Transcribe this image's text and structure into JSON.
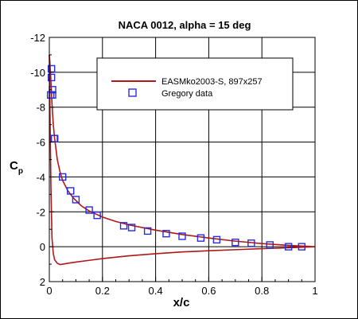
{
  "chart_data": {
    "type": "line",
    "title": "NACA 0012, alpha = 15 deg",
    "xlabel": "x/c",
    "ylabel_main": "C",
    "ylabel_sub": "p",
    "xlim": [
      0,
      1
    ],
    "ylim": [
      2,
      -12
    ],
    "y_inverted": true,
    "grid": true,
    "legend_placement": "top-right",
    "x_ticks": [
      0,
      0.2,
      0.4,
      0.6,
      0.8,
      1
    ],
    "x_tick_labels": [
      "0",
      "0.2",
      "0.4",
      "0.6",
      "0.8",
      "1"
    ],
    "y_ticks": [
      -12,
      -10,
      -8,
      -6,
      -4,
      -2,
      0,
      2
    ],
    "y_tick_labels": [
      "-12",
      "-10",
      "-8",
      "-6",
      "-4",
      "-2",
      "0",
      "2"
    ],
    "series": [
      {
        "name": "EASMko2003-S, 897x257",
        "kind": "line",
        "color": "#b01818",
        "upper": {
          "x": [
            0.0,
            0.002,
            0.005,
            0.01,
            0.015,
            0.02,
            0.03,
            0.04,
            0.05,
            0.07,
            0.09,
            0.12,
            0.15,
            0.2,
            0.25,
            0.3,
            0.4,
            0.5,
            0.6,
            0.7,
            0.8,
            0.9,
            1.0
          ],
          "y": [
            -11.0,
            -10.6,
            -9.8,
            -8.2,
            -7.0,
            -6.2,
            -5.0,
            -4.3,
            -3.8,
            -3.2,
            -2.8,
            -2.35,
            -2.05,
            -1.7,
            -1.45,
            -1.25,
            -0.95,
            -0.7,
            -0.5,
            -0.32,
            -0.18,
            -0.08,
            0.0
          ]
        },
        "lower": {
          "x": [
            0.0,
            0.003,
            0.006,
            0.01,
            0.015,
            0.02,
            0.03,
            0.04,
            0.05,
            0.07,
            0.1,
            0.15,
            0.2,
            0.3,
            0.4,
            0.5,
            0.6,
            0.7,
            0.8,
            0.9,
            1.0
          ],
          "y": [
            -11.0,
            -7.0,
            -3.5,
            -0.5,
            0.4,
            0.75,
            0.95,
            1.02,
            1.0,
            0.95,
            0.88,
            0.78,
            0.68,
            0.52,
            0.4,
            0.3,
            0.23,
            0.17,
            0.11,
            0.06,
            0.0
          ]
        }
      },
      {
        "name": "Gregory data",
        "kind": "marker",
        "color": "#2a2ae0",
        "x": [
          0.005,
          0.008,
          0.008,
          0.012,
          0.012,
          0.018,
          0.02,
          0.05,
          0.08,
          0.1,
          0.15,
          0.18,
          0.28,
          0.31,
          0.37,
          0.44,
          0.5,
          0.57,
          0.63,
          0.7,
          0.76,
          0.83,
          0.9,
          0.95
        ],
        "y": [
          -8.7,
          -10.2,
          -9.7,
          -9.0,
          -8.7,
          -6.2,
          -6.2,
          -4.0,
          -3.2,
          -2.7,
          -2.1,
          -1.8,
          -1.2,
          -1.1,
          -0.9,
          -0.75,
          -0.6,
          -0.5,
          -0.4,
          -0.25,
          -0.2,
          -0.1,
          0.0,
          0.0
        ]
      }
    ]
  }
}
